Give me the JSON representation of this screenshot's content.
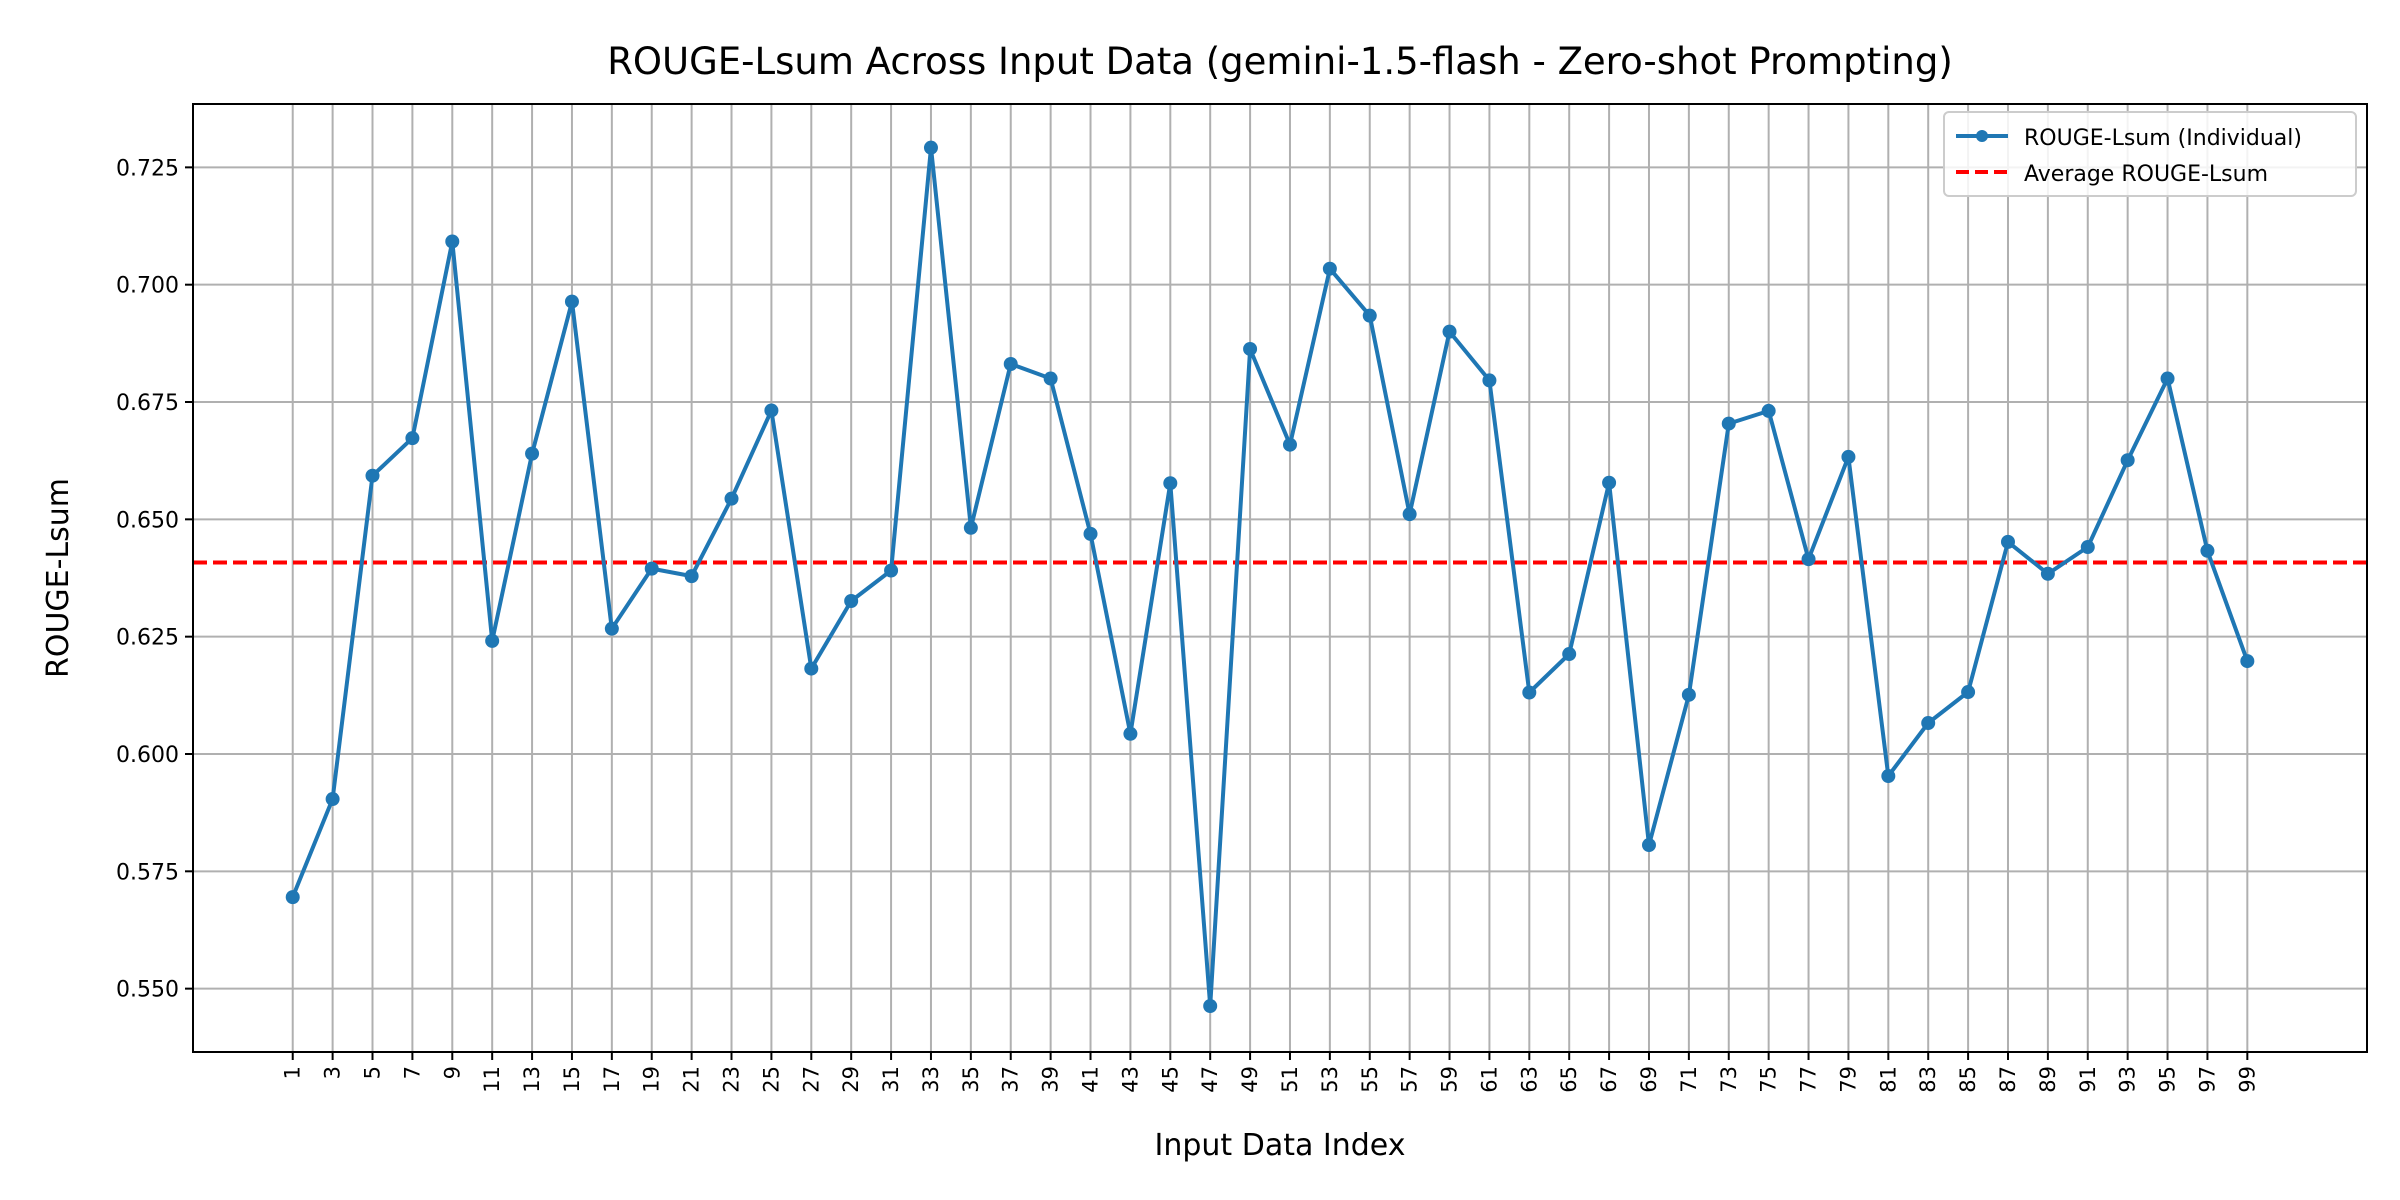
{
  "chart_data": {
    "type": "line",
    "title": "ROUGE-Lsum Across Input Data (gemini-1.5-flash - Zero-shot Prompting)",
    "xlabel": "Input Data Index",
    "ylabel": "ROUGE-Lsum",
    "x": [
      1,
      3,
      5,
      7,
      9,
      11,
      13,
      15,
      17,
      19,
      21,
      23,
      25,
      27,
      29,
      31,
      33,
      35,
      37,
      39,
      41,
      43,
      45,
      47,
      49,
      51,
      53,
      55,
      57,
      59,
      61,
      63,
      65,
      67,
      69,
      71,
      73,
      75,
      77,
      79,
      81,
      83,
      85,
      87,
      89,
      91,
      93,
      95,
      97,
      99
    ],
    "xticks": [
      "1",
      "3",
      "5",
      "7",
      "9",
      "11",
      "13",
      "15",
      "17",
      "19",
      "21",
      "23",
      "25",
      "27",
      "29",
      "31",
      "33",
      "35",
      "37",
      "39",
      "41",
      "43",
      "45",
      "47",
      "49",
      "51",
      "53",
      "55",
      "57",
      "59",
      "61",
      "63",
      "65",
      "67",
      "69",
      "71",
      "73",
      "75",
      "77",
      "79",
      "81",
      "83",
      "85",
      "87",
      "89",
      "91",
      "93",
      "95",
      "97",
      "99"
    ],
    "yticks": [
      "0.550",
      "0.575",
      "0.600",
      "0.625",
      "0.650",
      "0.675",
      "0.700",
      "0.725"
    ],
    "ylim": [
      0.5365,
      0.7385
    ],
    "xlim": [
      -4,
      105
    ],
    "series": [
      {
        "name": "ROUGE-Lsum (Individual)",
        "color": "#1f77b4",
        "values": [
          0.5695,
          0.5904,
          0.6593,
          0.6673,
          0.7092,
          0.6241,
          0.664,
          0.6964,
          0.6267,
          0.6395,
          0.6379,
          0.6544,
          0.6732,
          0.6182,
          0.6326,
          0.6391,
          0.7292,
          0.6482,
          0.6831,
          0.68,
          0.6469,
          0.6043,
          0.6577,
          0.5463,
          0.6863,
          0.6659,
          0.7034,
          0.6934,
          0.6511,
          0.69,
          0.6796,
          0.6131,
          0.6213,
          0.6578,
          0.5806,
          0.6126,
          0.6704,
          0.6731,
          0.6415,
          0.6633,
          0.5953,
          0.6066,
          0.6132,
          0.6452,
          0.6384,
          0.6441,
          0.6626,
          0.68,
          0.6433,
          0.6198
        ]
      }
    ],
    "average": {
      "name": "Average ROUGE-Lsum",
      "value": 0.6408,
      "color": "#ff0000"
    },
    "grid": true,
    "legend_position": "top-right"
  }
}
